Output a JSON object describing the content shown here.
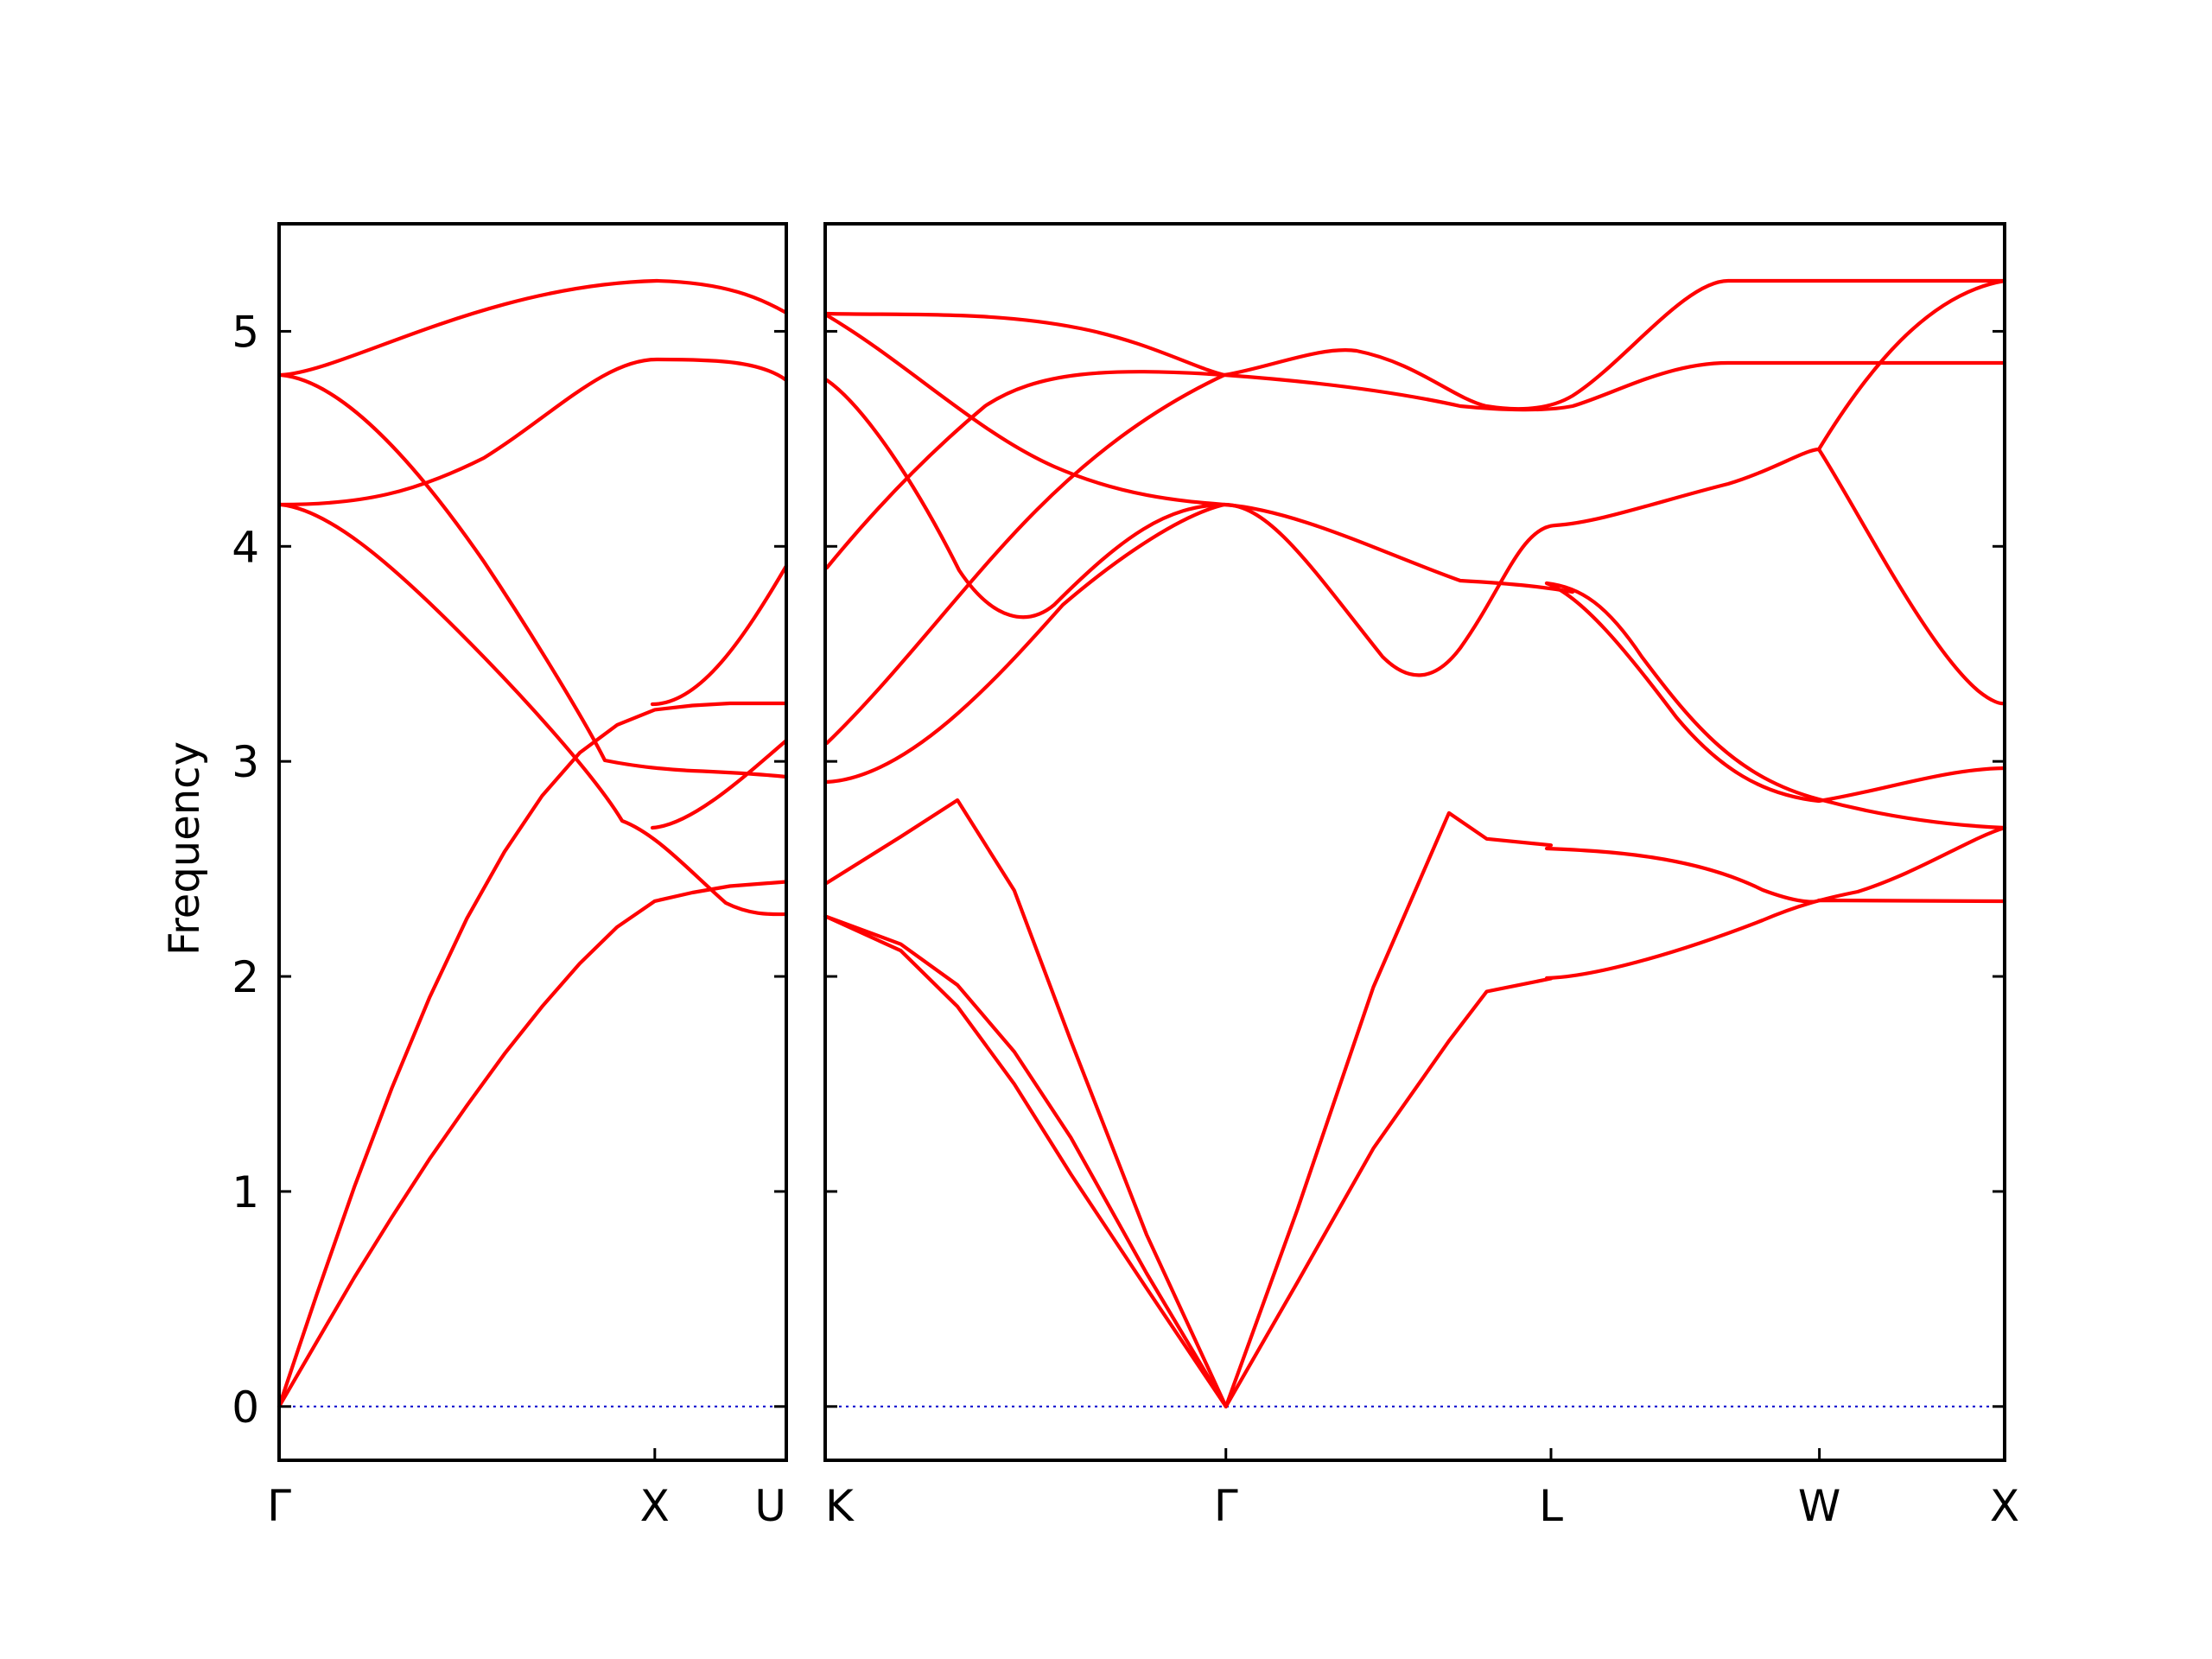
{
  "chart_data": {
    "type": "line",
    "title": "",
    "ylabel": "Frequency",
    "ylim": [
      -0.25,
      5.5
    ],
    "yticks": [
      0,
      1,
      2,
      3,
      4,
      5
    ],
    "grid": false,
    "colors": {
      "bands": "#ff0000",
      "zero_line": "#0000cc"
    },
    "panels": [
      {
        "id": "left",
        "xrange": [
          0,
          1.35
        ],
        "labels": [
          {
            "x": 0,
            "text": "Γ"
          },
          {
            "x": 1,
            "text": "X"
          },
          {
            "x": 1.35,
            "text": "U"
          }
        ],
        "bands": [
          {
            "name": "",
            "x": [
              0,
              0.05,
              0.1,
              0.2,
              0.3,
              0.4,
              0.5,
              0.6,
              0.7,
              0.8,
              0.9,
              1.0,
              1.1,
              1.2,
              1.35
            ],
            "y": [
              0,
              0.26,
              0.52,
              1.02,
              1.48,
              1.9,
              2.27,
              2.58,
              2.84,
              3.04,
              3.17,
              3.24,
              3.26,
              3.27,
              3.27
            ]
          },
          {
            "name": "",
            "x": [
              0,
              0.1,
              0.2,
              0.3,
              0.4,
              0.5,
              0.6,
              0.7,
              0.8,
              0.9,
              1.0,
              1.1,
              1.2,
              1.35
            ],
            "y": [
              0,
              0.3,
              0.6,
              0.88,
              1.15,
              1.4,
              1.64,
              1.86,
              2.06,
              2.23,
              2.35,
              2.39,
              2.42,
              2.44
            ]
          }
        ]
      },
      {
        "id": "right",
        "xrange": [
          1.35,
          4.47
        ],
        "labels": [
          {
            "x": 1.35,
            "text": "K"
          },
          {
            "x": 2.41,
            "text": "Γ"
          },
          {
            "x": 3.27,
            "text": "L"
          },
          {
            "x": 3.98,
            "text": "W"
          },
          {
            "x": 4.47,
            "text": "X"
          }
        ],
        "bands": [
          {
            "name": "",
            "x": [
              1.35,
              1.55,
              1.7,
              1.85,
              2.0,
              2.2,
              2.41
            ],
            "y": [
              2.28,
              2.12,
              1.86,
              1.5,
              1.08,
              0.55,
              0
            ]
          },
          {
            "name": "",
            "x": [
              1.35,
              1.55,
              1.7,
              1.85,
              2.0,
              2.2,
              2.41
            ],
            "y": [
              2.28,
              2.15,
              1.96,
              1.65,
              1.25,
              0.62,
              0
            ]
          },
          {
            "name": "",
            "x": [
              1.35,
              1.55,
              1.7,
              1.85,
              2.0,
              2.2,
              2.41
            ],
            "y": [
              2.43,
              2.65,
              2.82,
              2.4,
              1.7,
              0.8,
              0
            ]
          },
          {
            "name": "",
            "x": [
              2.41,
              2.6,
              2.8,
              3.0,
              3.1,
              3.27
            ],
            "y": [
              0,
              0.92,
              1.95,
              2.76,
              2.64,
              2.61
            ]
          },
          {
            "name": "",
            "x": [
              2.41,
              2.6,
              2.8,
              3.0,
              3.1,
              3.27
            ],
            "y": [
              0,
              0.58,
              1.2,
              1.7,
              1.93,
              1.99
            ]
          }
        ]
      }
    ]
  }
}
